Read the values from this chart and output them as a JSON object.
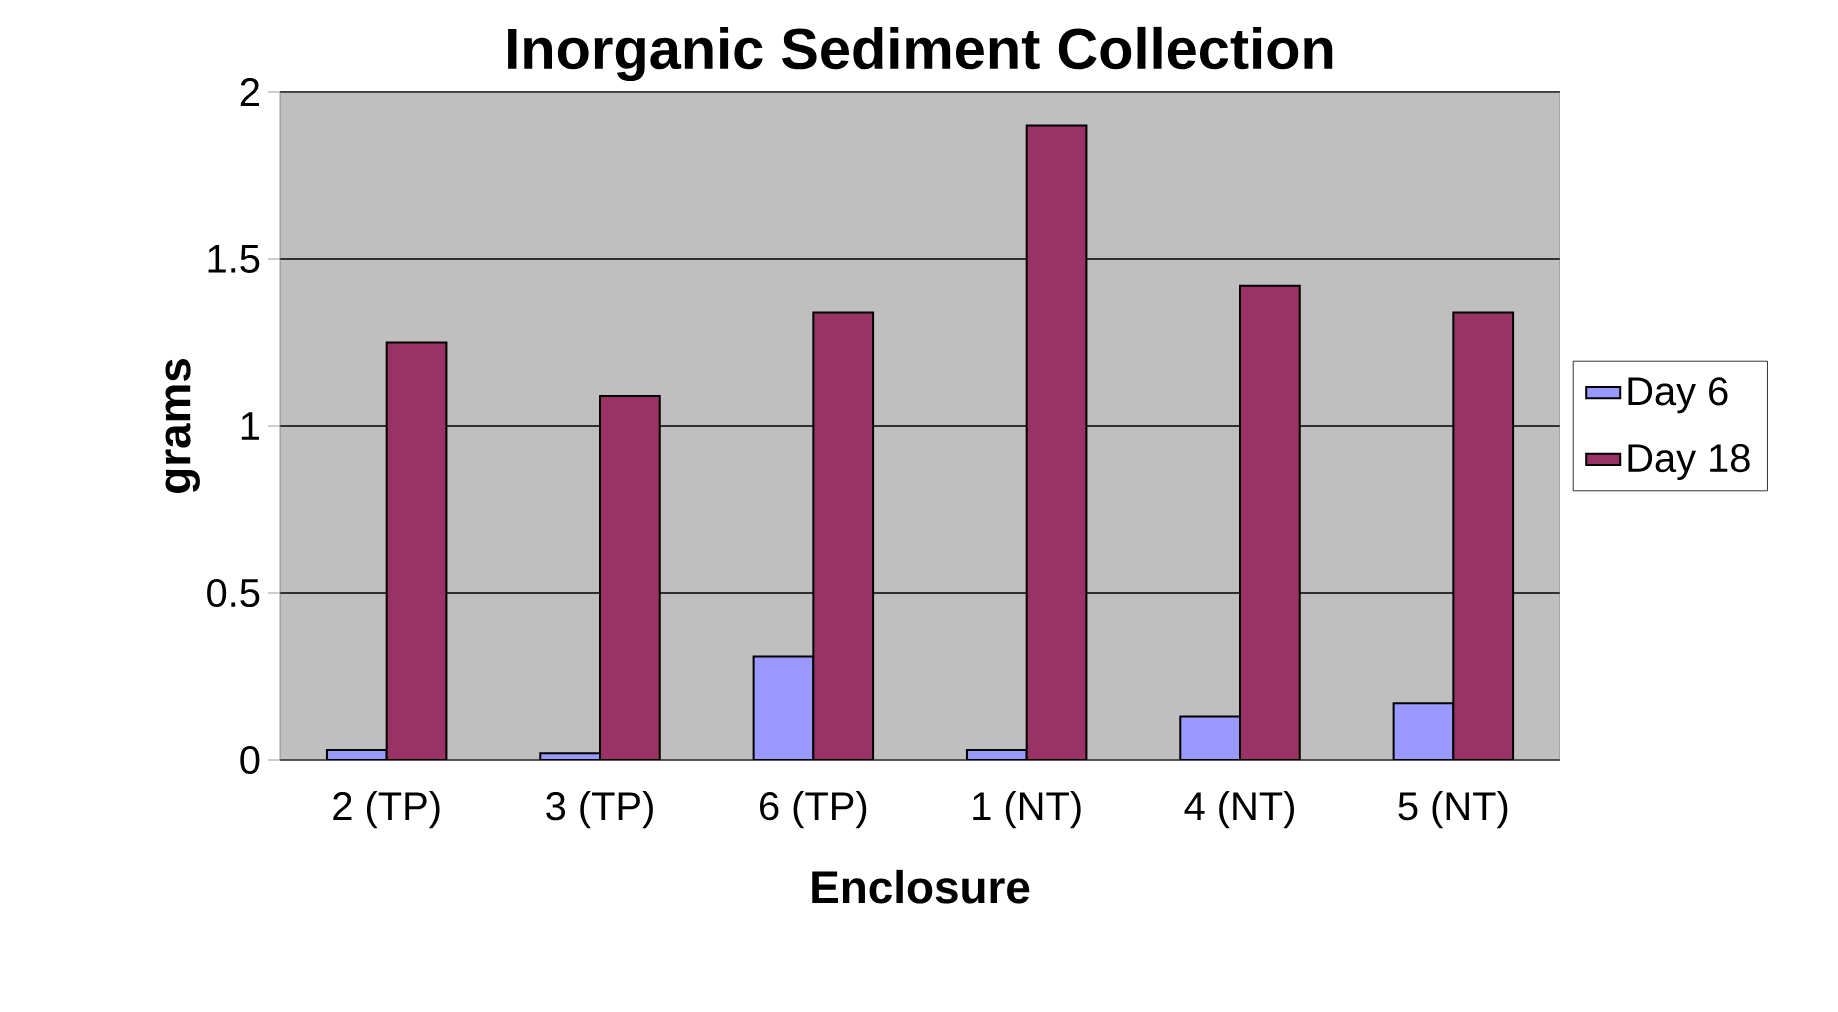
{
  "chart_data": {
    "type": "bar",
    "title": "Inorganic Sediment Collection",
    "xlabel": "Enclosure",
    "ylabel": "grams",
    "categories": [
      "2 (TP)",
      "3 (TP)",
      "6 (TP)",
      "1 (NT)",
      "4 (NT)",
      "5 (NT)"
    ],
    "series": [
      {
        "name": "Day 6",
        "color": "#9999ff",
        "values": [
          0.03,
          0.02,
          0.31,
          0.03,
          0.13,
          0.17
        ]
      },
      {
        "name": "Day 18",
        "color": "#993366",
        "values": [
          1.25,
          1.09,
          1.34,
          1.9,
          1.42,
          1.34
        ]
      }
    ],
    "ylim": [
      0,
      2
    ],
    "yticks": [
      0,
      0.5,
      1,
      1.5,
      2
    ],
    "grid": "y",
    "legend": "right"
  }
}
